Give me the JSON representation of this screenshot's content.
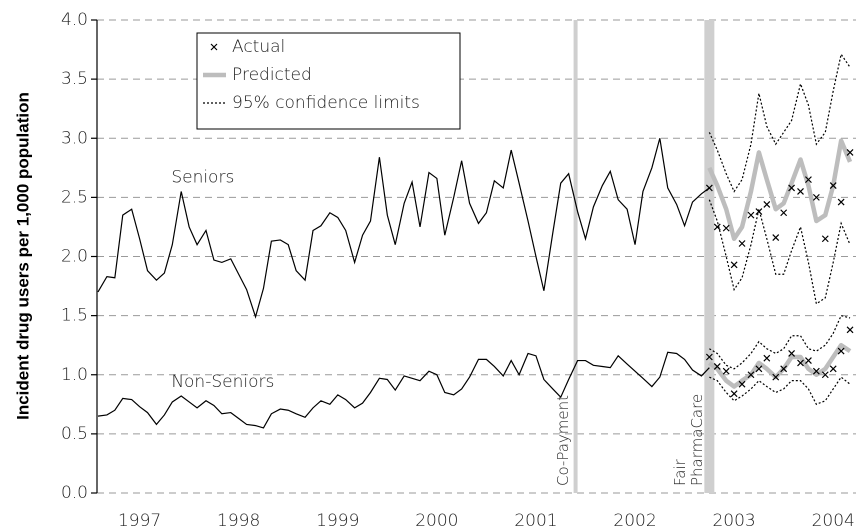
{
  "chart_data": {
    "type": "line",
    "ylabel": "Incident drug users per 1,000 population",
    "xlim": [
      1997.07,
      2004.73
    ],
    "ylim": [
      0,
      4
    ],
    "xticks": [
      {
        "value": 1997.5,
        "label": "1997"
      },
      {
        "value": 1998.5,
        "label": "1998"
      },
      {
        "value": 1999.5,
        "label": "1999"
      },
      {
        "value": 2000.5,
        "label": "2000"
      },
      {
        "value": 2001.5,
        "label": "2001"
      },
      {
        "value": 2002.5,
        "label": "2002"
      },
      {
        "value": 2003.5,
        "label": "2003"
      },
      {
        "value": 2004.5,
        "label": "2004"
      }
    ],
    "yticks": [
      {
        "value": 0,
        "label": "0.0"
      },
      {
        "value": 0.5,
        "label": "0.5"
      },
      {
        "value": 1,
        "label": "1.0"
      },
      {
        "value": 1.5,
        "label": "1.5"
      },
      {
        "value": 2,
        "label": "2.0"
      },
      {
        "value": 2.5,
        "label": "2.5"
      },
      {
        "value": 3,
        "label": "3.0"
      },
      {
        "value": 3.5,
        "label": "3.5"
      },
      {
        "value": 4,
        "label": "4.0"
      }
    ],
    "grid": true,
    "legend": {
      "position": "upper left",
      "actual": "Actual",
      "predicted": "Predicted",
      "limits": "95% confidence limits"
    },
    "colors": {
      "observed": "#000000",
      "actual": "#000000",
      "predicted": "#bdbdbd",
      "limits": "#000000",
      "event": "#cfcfcf"
    },
    "x": [
      1997.08,
      1997.17,
      1997.25,
      1997.33,
      1997.42,
      1997.5,
      1997.58,
      1997.67,
      1997.75,
      1997.83,
      1997.92,
      1998.0,
      1998.08,
      1998.17,
      1998.25,
      1998.33,
      1998.42,
      1998.5,
      1998.58,
      1998.67,
      1998.75,
      1998.83,
      1998.92,
      1999.0,
      1999.08,
      1999.17,
      1999.25,
      1999.33,
      1999.42,
      1999.5,
      1999.58,
      1999.67,
      1999.75,
      1999.83,
      1999.92,
      2000.0,
      2000.08,
      2000.17,
      2000.25,
      2000.33,
      2000.42,
      2000.5,
      2000.58,
      2000.67,
      2000.75,
      2000.83,
      2000.92,
      2001.0,
      2001.08,
      2001.17,
      2001.25,
      2001.33,
      2001.42,
      2001.5,
      2001.58,
      2001.67,
      2001.75,
      2001.83,
      2001.92,
      2002.0,
      2002.08,
      2002.17,
      2002.25,
      2002.33,
      2002.42,
      2002.5,
      2002.58,
      2002.67,
      2002.75,
      2002.83,
      2002.92,
      2003.0,
      2003.08,
      2003.17,
      2003.25
    ],
    "forecast_x": [
      2003.25,
      2003.33,
      2003.42,
      2003.5,
      2003.58,
      2003.67,
      2003.75,
      2003.83,
      2003.92,
      2004.0,
      2004.08,
      2004.17,
      2004.25,
      2004.33,
      2004.42,
      2004.5,
      2004.58,
      2004.67
    ],
    "series": [
      {
        "name": "Seniors",
        "values": [
          1.7,
          1.83,
          1.82,
          2.35,
          2.4,
          2.15,
          1.88,
          1.8,
          1.86,
          2.1,
          2.55,
          2.25,
          2.1,
          2.22,
          1.97,
          1.95,
          1.98,
          1.85,
          1.72,
          1.49,
          1.73,
          2.13,
          2.14,
          2.1,
          1.88,
          1.8,
          2.22,
          2.26,
          2.37,
          2.33,
          2.22,
          1.95,
          2.18,
          2.3,
          2.84,
          2.35,
          2.1,
          2.45,
          2.63,
          2.25,
          2.71,
          2.66,
          2.18,
          2.5,
          2.81,
          2.45,
          2.28,
          2.37,
          2.64,
          2.58,
          2.9,
          2.62,
          2.3,
          2.0,
          1.71,
          2.2,
          2.62,
          2.7,
          2.38,
          2.15,
          2.42,
          2.6,
          2.72,
          2.48,
          2.4,
          2.1,
          2.55,
          2.75,
          3.0,
          2.58,
          2.44,
          2.26,
          2.46,
          2.53,
          2.58
        ],
        "actual": [
          2.58,
          2.25,
          2.24,
          1.93,
          2.11,
          2.35,
          2.38,
          2.44,
          2.16,
          2.37,
          2.58,
          2.55,
          2.65,
          2.5,
          2.15,
          2.6,
          2.46,
          2.88
        ],
        "predicted": [
          2.75,
          2.6,
          2.4,
          2.15,
          2.25,
          2.55,
          2.88,
          2.65,
          2.4,
          2.45,
          2.62,
          2.82,
          2.6,
          2.3,
          2.35,
          2.6,
          2.98,
          2.8
        ],
        "upper": [
          3.05,
          2.9,
          2.7,
          2.55,
          2.65,
          2.95,
          3.38,
          3.1,
          2.95,
          3.05,
          3.15,
          3.46,
          3.28,
          2.95,
          3.05,
          3.4,
          3.71,
          3.6
        ],
        "lower": [
          2.48,
          2.3,
          2.0,
          1.72,
          1.82,
          2.1,
          2.4,
          2.15,
          1.85,
          1.85,
          2.05,
          2.25,
          1.95,
          1.6,
          1.65,
          1.95,
          2.28,
          2.1
        ]
      },
      {
        "name": "Non-Seniors",
        "values": [
          0.65,
          0.66,
          0.7,
          0.8,
          0.79,
          0.73,
          0.68,
          0.58,
          0.66,
          0.77,
          0.82,
          0.77,
          0.72,
          0.78,
          0.74,
          0.67,
          0.68,
          0.63,
          0.58,
          0.57,
          0.55,
          0.67,
          0.71,
          0.7,
          0.67,
          0.64,
          0.72,
          0.78,
          0.75,
          0.83,
          0.79,
          0.72,
          0.76,
          0.85,
          0.97,
          0.96,
          0.87,
          0.99,
          0.97,
          0.95,
          1.03,
          1.0,
          0.85,
          0.83,
          0.88,
          0.98,
          1.13,
          1.13,
          1.07,
          0.99,
          1.12,
          1.0,
          1.18,
          1.16,
          0.96,
          0.88,
          0.81,
          0.96,
          1.12,
          1.12,
          1.08,
          1.07,
          1.06,
          1.16,
          1.09,
          1.03,
          0.97,
          0.9,
          0.98,
          1.19,
          1.18,
          1.13,
          1.04,
          0.99,
          1.06
        ],
        "actual": [
          1.15,
          1.07,
          1.03,
          0.84,
          0.92,
          1.0,
          1.05,
          1.14,
          0.98,
          1.05,
          1.18,
          1.1,
          1.12,
          1.03,
          1.0,
          1.05,
          1.2,
          1.38
        ],
        "predicted": [
          1.1,
          1.05,
          0.95,
          0.9,
          0.95,
          1.0,
          1.1,
          1.05,
          0.98,
          1.05,
          1.15,
          1.15,
          1.05,
          1.0,
          1.05,
          1.15,
          1.25,
          1.2
        ],
        "upper": [
          1.22,
          1.18,
          1.08,
          1.05,
          1.1,
          1.18,
          1.28,
          1.22,
          1.18,
          1.22,
          1.33,
          1.33,
          1.22,
          1.2,
          1.25,
          1.35,
          1.5,
          1.48
        ],
        "lower": [
          0.98,
          0.95,
          0.85,
          0.78,
          0.82,
          0.88,
          0.95,
          0.9,
          0.85,
          0.88,
          0.95,
          0.95,
          0.88,
          0.75,
          0.78,
          0.88,
          0.98,
          0.92
        ]
      }
    ],
    "series_labels": [
      {
        "x": 1997.82,
        "y": 2.67
      },
      {
        "x": 1997.82,
        "y": 0.94
      }
    ],
    "events": [
      {
        "x": 2001.9,
        "label_lines": [
          "Co-Payment"
        ]
      },
      {
        "x": 2003.25,
        "label_lines": [
          "Fair",
          "PharmaCare"
        ]
      }
    ]
  }
}
